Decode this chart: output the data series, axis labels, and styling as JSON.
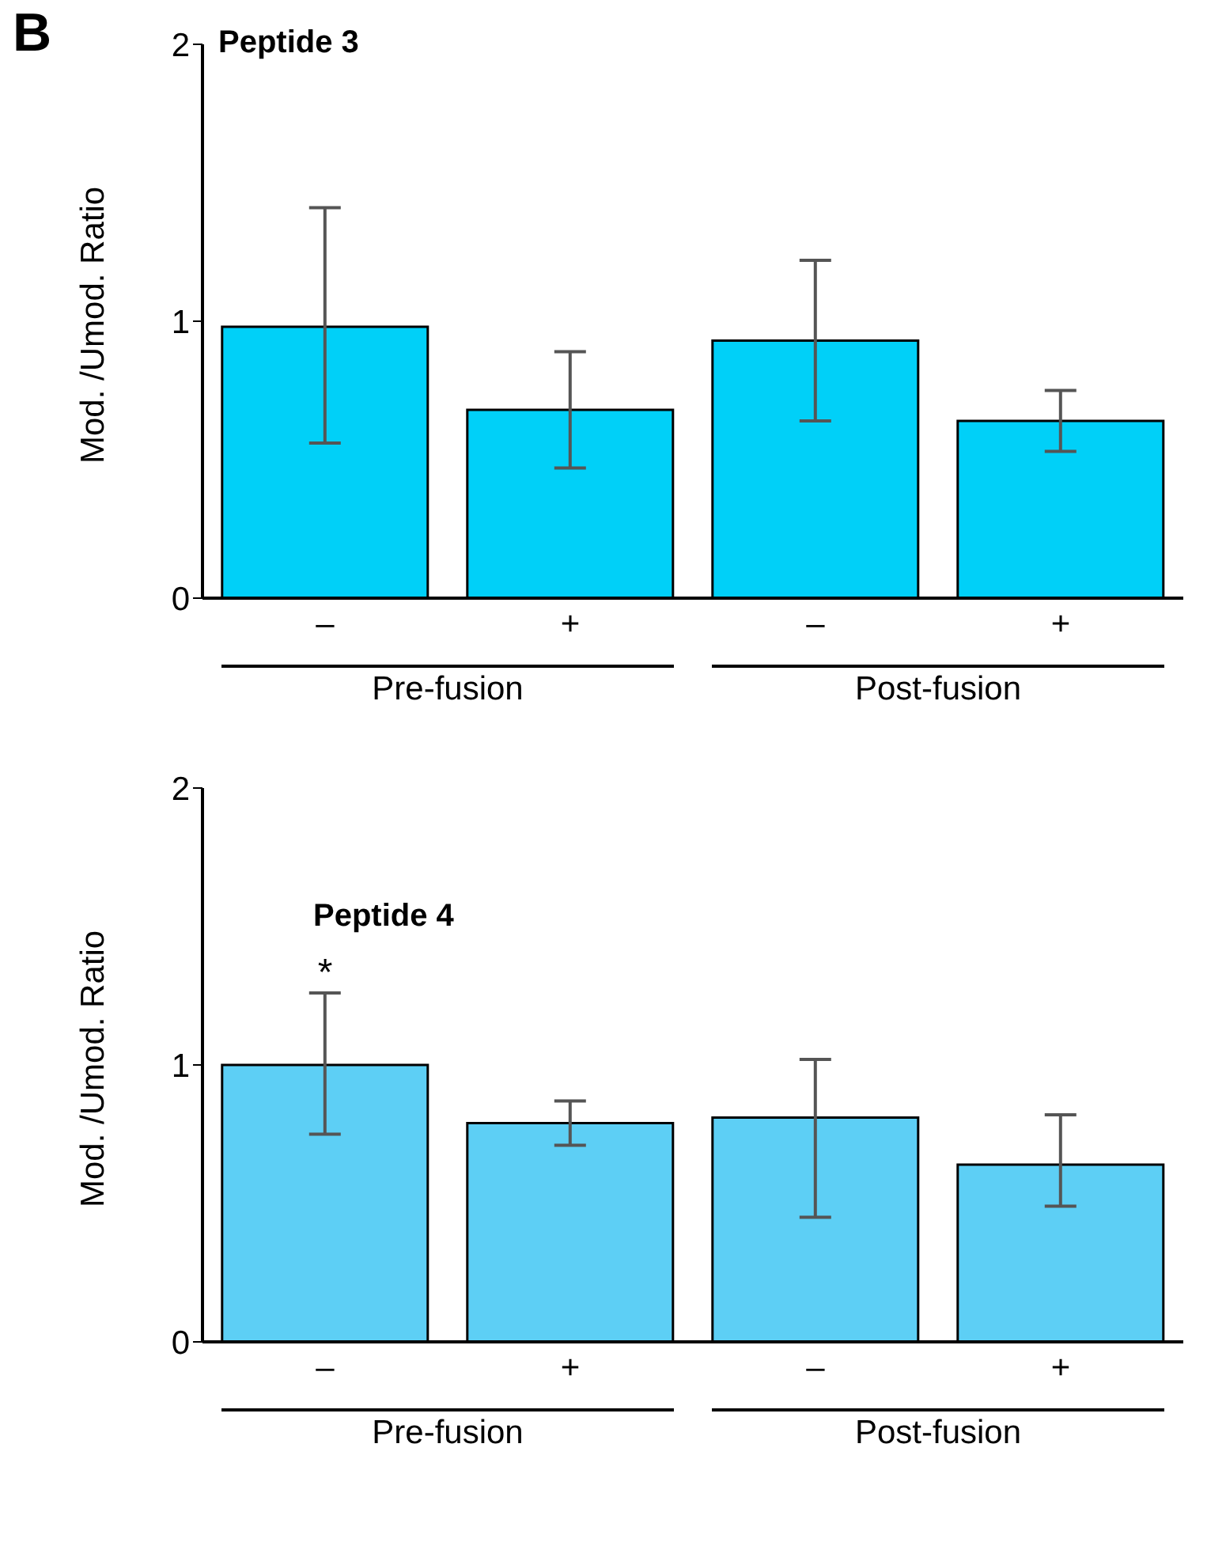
{
  "chart_data": [
    {
      "type": "bar",
      "title": "Peptide 3",
      "ylabel": "Mod. /Umod. Ratio",
      "categories": [
        "–",
        "+",
        "–",
        "+"
      ],
      "color": "#00d0f8",
      "values": [
        0.98,
        0.68,
        0.93,
        0.64
      ],
      "errors": [
        [
          0.56,
          1.41
        ],
        [
          0.47,
          0.89
        ],
        [
          0.64,
          1.22
        ],
        [
          0.53,
          0.75
        ]
      ],
      "ylim": [
        0,
        2
      ],
      "yticks": [
        0,
        1,
        2
      ],
      "grid": false,
      "annotations": [
        "B",
        "Pre-fusion",
        "Post-fusion"
      ]
    },
    {
      "type": "bar",
      "title": "Peptide 4",
      "ylabel": "Mod. /Umod. Ratio",
      "categories": [
        "–",
        "+",
        "–",
        "+"
      ],
      "color": "#5dcff5",
      "values": [
        1.0,
        0.79,
        0.81,
        0.64
      ],
      "errors": [
        [
          0.75,
          1.26
        ],
        [
          0.71,
          0.87
        ],
        [
          0.45,
          1.02
        ],
        [
          0.49,
          0.82
        ]
      ],
      "ylim": [
        0,
        2
      ],
      "yticks": [
        0,
        1,
        2
      ],
      "grid": false,
      "annotations": [
        {
          "text": "*",
          "x": "–",
          "y": 1.26
        },
        "Pre-fusion",
        "Post-fusion"
      ]
    }
  ]
}
